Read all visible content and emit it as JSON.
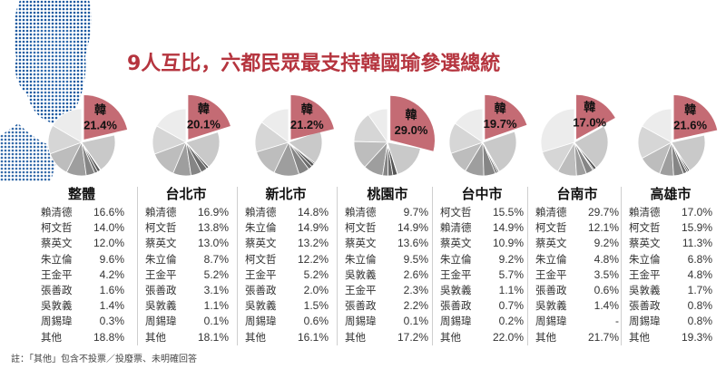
{
  "title": "9人互比，六都民眾最支持韓國瑜參選總統",
  "footnote": "註：「其他」包含不投票／投廢票、未明確回答",
  "highlight_label": "韓",
  "colors": {
    "highlight": "#c46b74",
    "title": "#b5343e"
  },
  "chart_data": [
    {
      "type": "pie",
      "title": "整體",
      "highlight": {
        "name": "韓",
        "value": 21.4
      },
      "rows": [
        [
          "賴清德",
          "16.6%"
        ],
        [
          "柯文哲",
          "14.0%"
        ],
        [
          "蔡英文",
          "12.0%"
        ],
        [
          "朱立倫",
          "9.6%"
        ],
        [
          "王金平",
          "4.2%"
        ],
        [
          "張善政",
          "1.6%"
        ],
        [
          "吳敦義",
          "1.4%"
        ],
        [
          "周錫瑋",
          "0.3%"
        ],
        [
          "其他",
          "18.8%"
        ]
      ],
      "slices": [
        16.6,
        14.0,
        12.0,
        9.6,
        4.2,
        1.6,
        1.4,
        0.3,
        18.8
      ]
    },
    {
      "type": "pie",
      "title": "台北市",
      "highlight": {
        "name": "韓",
        "value": 20.1
      },
      "rows": [
        [
          "賴清德",
          "16.9%"
        ],
        [
          "柯文哲",
          "13.8%"
        ],
        [
          "蔡英文",
          "13.0%"
        ],
        [
          "朱立倫",
          "8.7%"
        ],
        [
          "王金平",
          "5.2%"
        ],
        [
          "張善政",
          "3.1%"
        ],
        [
          "吳敦義",
          "1.1%"
        ],
        [
          "周錫瑋",
          "0.1%"
        ],
        [
          "其他",
          "18.1%"
        ]
      ],
      "slices": [
        16.9,
        13.8,
        13.0,
        8.7,
        5.2,
        3.1,
        1.1,
        0.1,
        18.1
      ]
    },
    {
      "type": "pie",
      "title": "新北市",
      "highlight": {
        "name": "韓",
        "value": 21.2
      },
      "rows": [
        [
          "賴清德",
          "14.8%"
        ],
        [
          "朱立倫",
          "14.9%"
        ],
        [
          "蔡英文",
          "13.2%"
        ],
        [
          "柯文哲",
          "12.2%"
        ],
        [
          "王金平",
          "5.2%"
        ],
        [
          "張善政",
          "2.0%"
        ],
        [
          "吳敦義",
          "1.5%"
        ],
        [
          "周錫瑋",
          "0.6%"
        ],
        [
          "其他",
          "16.1%"
        ]
      ],
      "slices": [
        14.8,
        14.9,
        13.2,
        12.2,
        5.2,
        2.0,
        1.5,
        0.6,
        16.1
      ]
    },
    {
      "type": "pie",
      "title": "桃園市",
      "highlight": {
        "name": "韓",
        "value": 29.0
      },
      "rows": [
        [
          "賴清德",
          "9.7%"
        ],
        [
          "柯文哲",
          "14.9%"
        ],
        [
          "蔡英文",
          "13.6%"
        ],
        [
          "朱立倫",
          "9.5%"
        ],
        [
          "吳敦義",
          "2.6%"
        ],
        [
          "王金平",
          "2.3%"
        ],
        [
          "張善政",
          "2.2%"
        ],
        [
          "周錫瑋",
          "0.1%"
        ],
        [
          "其他",
          "17.2%"
        ]
      ],
      "slices": [
        9.7,
        14.9,
        13.6,
        9.5,
        2.6,
        2.3,
        2.2,
        0.1,
        17.2
      ]
    },
    {
      "type": "pie",
      "title": "台中市",
      "highlight": {
        "name": "韓",
        "value": 19.7
      },
      "rows": [
        [
          "柯文哲",
          "15.5%"
        ],
        [
          "賴清德",
          "14.9%"
        ],
        [
          "蔡英文",
          "10.9%"
        ],
        [
          "朱立倫",
          "9.2%"
        ],
        [
          "王金平",
          "5.7%"
        ],
        [
          "吳敦義",
          "1.1%"
        ],
        [
          "張善政",
          "0.7%"
        ],
        [
          "周錫瑋",
          "0.2%"
        ],
        [
          "其他",
          "22.0%"
        ]
      ],
      "slices": [
        15.5,
        14.9,
        10.9,
        9.2,
        5.7,
        1.1,
        0.7,
        0.2,
        22.0
      ]
    },
    {
      "type": "pie",
      "title": "台南市",
      "highlight": {
        "name": "韓",
        "value": 17.0
      },
      "rows": [
        [
          "賴清德",
          "29.7%"
        ],
        [
          "柯文哲",
          "12.1%"
        ],
        [
          "蔡英文",
          "9.2%"
        ],
        [
          "朱立倫",
          "4.8%"
        ],
        [
          "王金平",
          "3.5%"
        ],
        [
          "張善政",
          "0.6%"
        ],
        [
          "吳敦義",
          "1.4%"
        ],
        [
          "周錫瑋",
          "-"
        ],
        [
          "其他",
          "21.7%"
        ]
      ],
      "slices": [
        29.7,
        12.1,
        9.2,
        4.8,
        3.5,
        0.6,
        1.4,
        0,
        21.7
      ]
    },
    {
      "type": "pie",
      "title": "高雄市",
      "highlight": {
        "name": "韓",
        "value": 21.6
      },
      "rows": [
        [
          "賴清德",
          "17.0%"
        ],
        [
          "柯文哲",
          "15.9%"
        ],
        [
          "蔡英文",
          "11.3%"
        ],
        [
          "朱立倫",
          "6.8%"
        ],
        [
          "王金平",
          "4.8%"
        ],
        [
          "吳敦義",
          "1.7%"
        ],
        [
          "張善政",
          "0.8%"
        ],
        [
          "周錫瑋",
          "0.8%"
        ],
        [
          "其他",
          "19.3%"
        ]
      ],
      "slices": [
        17.0,
        15.9,
        11.3,
        6.8,
        4.8,
        1.7,
        0.8,
        0.8,
        19.3
      ]
    }
  ]
}
